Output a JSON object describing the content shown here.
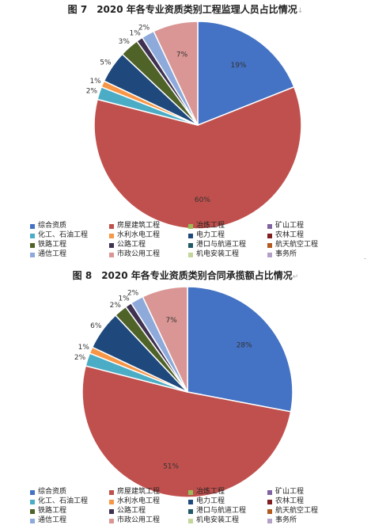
{
  "categories": [
    "综合资质",
    "房屋建筑工程",
    "冶炼工程",
    "矿山工程",
    "化工、石油工程",
    "水利水电工程",
    "电力工程",
    "农林工程",
    "铁路工程",
    "公路工程",
    "港口与航道工程",
    "航天航空工程",
    "通信工程",
    "市政公用工程",
    "机电安装工程",
    "事务所"
  ],
  "colors": [
    "#4472c4",
    "#c0504d",
    "#9bbb59",
    "#8064a2",
    "#4bacc6",
    "#f79646",
    "#1f497d",
    "#7f1f1f",
    "#4f6228",
    "#3f3151",
    "#215968",
    "#b35a1e",
    "#8eaadb",
    "#d99694",
    "#c3d69b",
    "#b3a2c7"
  ],
  "chart_data": [
    {
      "type": "pie",
      "title": "图 7　2020 年各专业资质类别工程监理人员占比情况",
      "title_mark": "↓",
      "categories": [
        "综合资质",
        "房屋建筑工程",
        "冶炼工程",
        "矿山工程",
        "化工、石油工程",
        "水利水电工程",
        "电力工程",
        "农林工程",
        "铁路工程",
        "公路工程",
        "港口与航道工程",
        "航天航空工程",
        "通信工程",
        "市政公用工程",
        "机电安装工程",
        "事务所"
      ],
      "values": [
        19,
        60,
        0,
        0,
        2,
        1,
        5,
        0,
        3,
        1,
        0,
        0,
        2,
        7,
        0,
        0
      ],
      "data_labels": [
        "19%",
        "60%",
        "",
        "",
        "2%",
        "1%",
        "5%",
        "",
        "3%",
        "1%",
        "",
        "",
        "2%",
        "7%",
        "",
        ""
      ],
      "legend_position": "bottom"
    },
    {
      "type": "pie",
      "title": "图 8　2020 年各专业资质类别合同承揽额占比情况",
      "title_mark": "↵",
      "categories": [
        "综合资质",
        "房屋建筑工程",
        "冶炼工程",
        "矿山工程",
        "化工、石油工程",
        "水利水电工程",
        "电力工程",
        "农林工程",
        "铁路工程",
        "公路工程",
        "港口与航道工程",
        "航天航空工程",
        "通信工程",
        "市政公用工程",
        "机电安装工程",
        "事务所"
      ],
      "values": [
        28,
        51,
        0,
        0,
        2,
        1,
        6,
        0,
        2,
        1,
        0,
        0,
        2,
        7,
        0,
        0
      ],
      "data_labels": [
        "28%",
        "51%",
        "",
        "",
        "2%",
        "1%",
        "6%",
        "",
        "2%",
        "1%",
        "",
        "",
        "2%",
        "7%",
        "",
        ""
      ],
      "legend_position": "bottom"
    }
  ]
}
